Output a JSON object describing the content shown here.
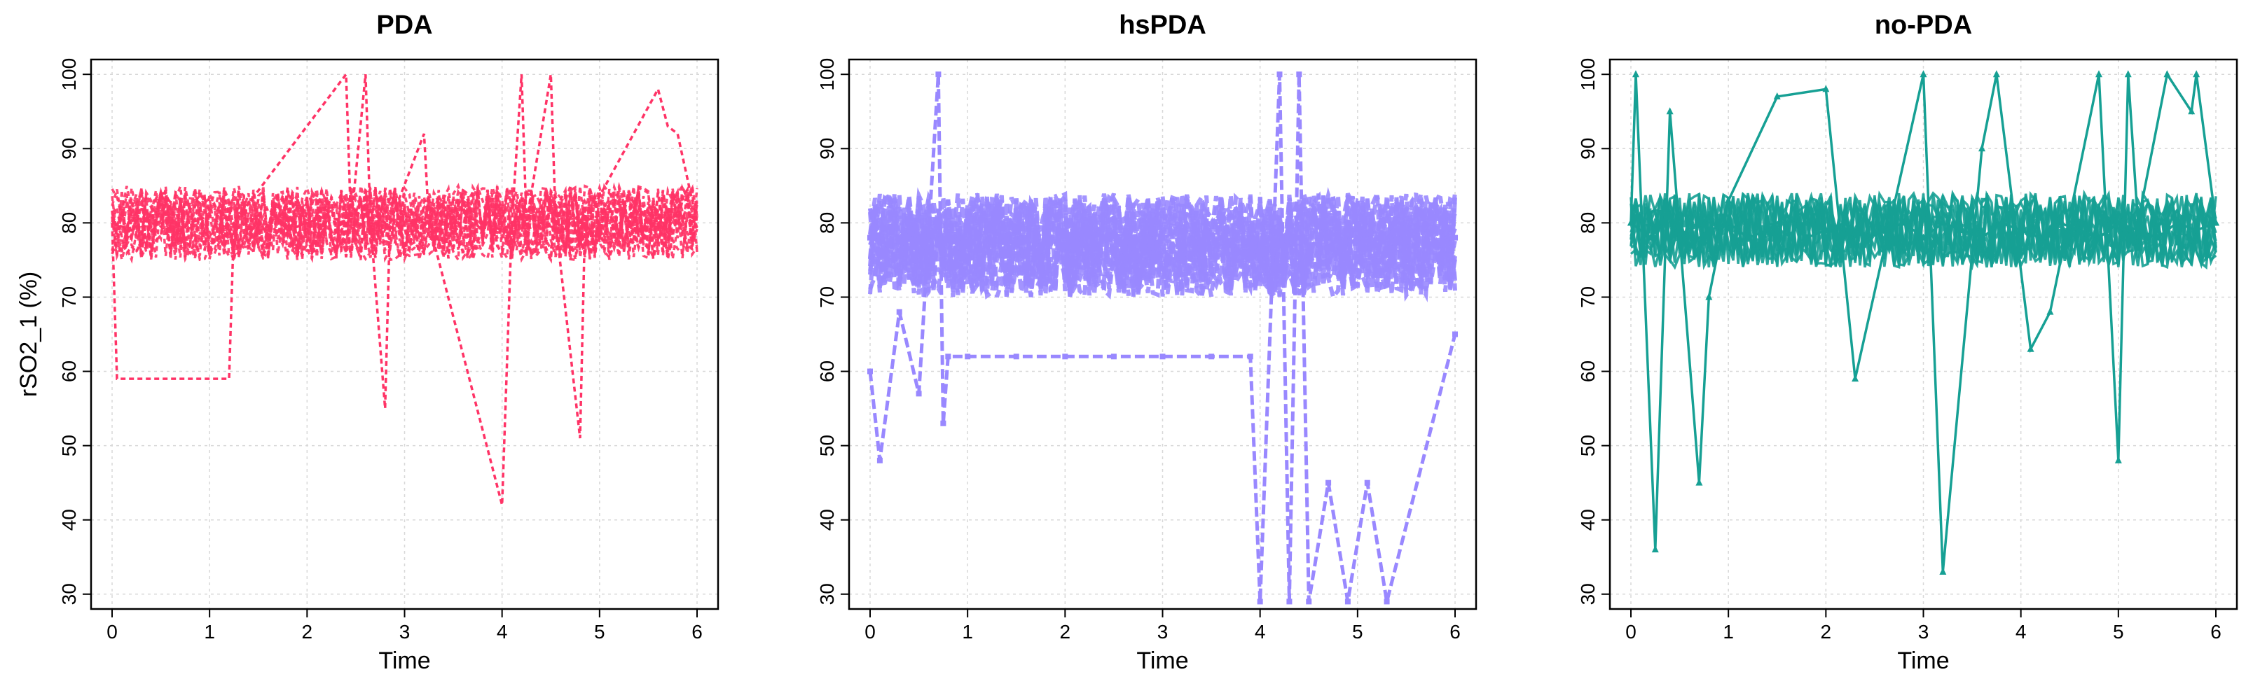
{
  "colors": {
    "PDA": "#FF3366",
    "hsPDA": "#9988FF",
    "no-PDA": "#16A094"
  },
  "chart_data": [
    {
      "type": "line",
      "title": "PDA",
      "xlabel": "Time",
      "ylabel": "rSO2_1 (%)",
      "xlim": [
        0,
        6
      ],
      "ylim": [
        28,
        102
      ],
      "x_ticks": [
        0,
        1,
        2,
        3,
        4,
        5,
        6
      ],
      "y_ticks": [
        30,
        40,
        50,
        60,
        70,
        80,
        90,
        100
      ],
      "grid": true,
      "line_style": "dashed",
      "marker": "none",
      "series": [
        {
          "x": [
            0,
            0.2,
            0.4,
            0.6,
            0.8,
            1.0,
            1.2,
            1.4,
            1.6,
            1.8,
            2.0,
            2.2,
            2.4,
            2.6,
            2.8,
            3.0,
            3.2,
            3.4,
            3.6,
            3.8,
            4.0,
            4.2,
            4.4,
            4.6,
            4.8,
            5.0,
            5.2,
            5.4,
            5.6,
            5.8,
            6.0
          ],
          "values": [
            80,
            79,
            81,
            78,
            80,
            81,
            79,
            80,
            82,
            79,
            80,
            81,
            80,
            82,
            80,
            81,
            80,
            79,
            81,
            80,
            79,
            81,
            80,
            79,
            80,
            81,
            80,
            79,
            80,
            81,
            80
          ]
        },
        {
          "x": [
            0,
            0.05,
            1.2,
            1.25,
            2.4,
            2.45,
            2.6,
            2.65,
            2.8,
            2.85,
            3.2,
            3.25,
            4.0,
            4.1,
            4.2,
            4.25,
            4.5,
            4.55,
            4.8,
            4.85,
            5.6,
            5.7,
            5.8,
            6.0
          ],
          "values": [
            80,
            59,
            59,
            80,
            100,
            80,
            100,
            80,
            55,
            80,
            92,
            80,
            42,
            80,
            100,
            80,
            100,
            80,
            51,
            80,
            98,
            93,
            92,
            80
          ]
        }
      ]
    },
    {
      "type": "line",
      "title": "hsPDA",
      "xlabel": "Time",
      "ylabel": "",
      "xlim": [
        0,
        6
      ],
      "ylim": [
        28,
        102
      ],
      "x_ticks": [
        0,
        1,
        2,
        3,
        4,
        5,
        6
      ],
      "y_ticks": [
        30,
        40,
        50,
        60,
        70,
        80,
        90,
        100
      ],
      "grid": true,
      "line_style": "dashed",
      "marker": "square",
      "series": [
        {
          "x": [
            0,
            0.2,
            0.4,
            0.6,
            0.8,
            1.0,
            1.2,
            1.4,
            1.6,
            1.8,
            2.0,
            2.2,
            2.4,
            2.6,
            2.8,
            3.0,
            3.2,
            3.4,
            3.6,
            3.8,
            4.0,
            4.2,
            4.4,
            4.6,
            4.8,
            5.0,
            5.2,
            5.4,
            5.6,
            5.8,
            6.0
          ],
          "values": [
            78,
            77,
            79,
            76,
            78,
            77,
            79,
            78,
            76,
            78,
            77,
            79,
            78,
            77,
            76,
            78,
            79,
            77,
            78,
            76,
            77,
            79,
            78,
            77,
            76,
            78,
            77,
            79,
            78,
            77,
            78
          ]
        },
        {
          "x": [
            0,
            0.1,
            0.3,
            0.5,
            0.7,
            0.75,
            0.8,
            1.0,
            1.5,
            2.0,
            2.5,
            3.0,
            3.5,
            3.9,
            4.0,
            4.2,
            4.3,
            4.4,
            4.5,
            4.7,
            4.9,
            5.1,
            5.3,
            6.0
          ],
          "values": [
            60,
            48,
            68,
            57,
            100,
            53,
            62,
            62,
            62,
            62,
            62,
            62,
            62,
            62,
            29,
            100,
            29,
            100,
            29,
            45,
            29,
            45,
            29,
            65
          ]
        }
      ]
    },
    {
      "type": "line",
      "title": "no-PDA",
      "xlabel": "Time",
      "ylabel": "",
      "xlim": [
        0,
        6
      ],
      "ylim": [
        28,
        102
      ],
      "x_ticks": [
        0,
        1,
        2,
        3,
        4,
        5,
        6
      ],
      "y_ticks": [
        30,
        40,
        50,
        60,
        70,
        80,
        90,
        100
      ],
      "grid": true,
      "line_style": "solid",
      "marker": "triangle",
      "series": [
        {
          "x": [
            0,
            0.2,
            0.4,
            0.6,
            0.8,
            1.0,
            1.2,
            1.4,
            1.6,
            1.8,
            2.0,
            2.2,
            2.4,
            2.6,
            2.8,
            3.0,
            3.2,
            3.4,
            3.6,
            3.8,
            4.0,
            4.2,
            4.4,
            4.6,
            4.8,
            5.0,
            5.2,
            5.4,
            5.6,
            5.8,
            6.0
          ],
          "values": [
            80,
            78,
            81,
            77,
            79,
            80,
            78,
            79,
            81,
            78,
            79,
            80,
            78,
            79,
            80,
            78,
            80,
            79,
            78,
            80,
            79,
            78,
            80,
            79,
            78,
            80,
            79,
            78,
            80,
            79,
            80
          ]
        },
        {
          "x": [
            0,
            0.05,
            0.25,
            0.4,
            0.7,
            0.8,
            1.0,
            1.5,
            2.0,
            2.3,
            3.0,
            3.2,
            3.6,
            3.75,
            4.1,
            4.3,
            4.8,
            5.0,
            5.1,
            5.2,
            5.5,
            5.75,
            5.8,
            6.0
          ],
          "values": [
            80,
            100,
            36,
            95,
            45,
            70,
            83,
            97,
            98,
            59,
            100,
            33,
            90,
            100,
            63,
            68,
            100,
            48,
            100,
            80,
            100,
            95,
            100,
            80
          ]
        }
      ]
    }
  ]
}
